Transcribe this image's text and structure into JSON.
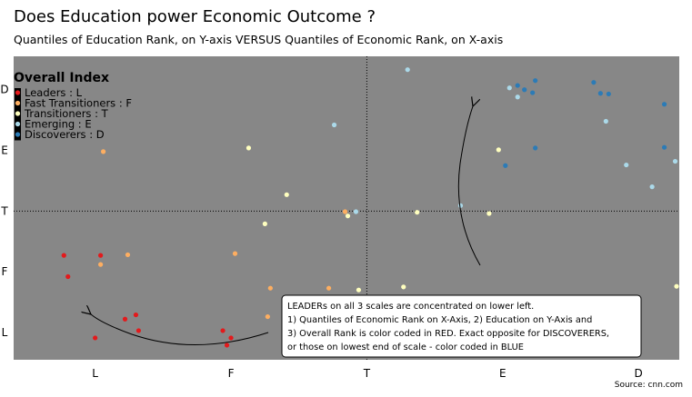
{
  "title": "Does Education power Economic Outcome ?",
  "subtitle": "Quantiles of Education Rank, on Y-axis VERSUS Quantiles of Economic Rank, on X-axis",
  "source": "Source: cnn.com",
  "colors": {
    "plot_bg": "#878787",
    "Leaders": "#e31a1c",
    "Fast Transitioners": "#fdae61",
    "Transitioners": "#ffffbf",
    "Emerging": "#abd9e9",
    "Discoverers": "#2c7bb6"
  },
  "chart_data": {
    "type": "scatter",
    "title": "Does Education power Economic Outcome ?",
    "subtitle": "Quantiles of Education Rank, on Y-axis VERSUS Quantiles of Economic Rank, on X-axis",
    "x_categories": [
      "L",
      "F",
      "T",
      "E",
      "D"
    ],
    "y_categories": [
      "L",
      "F",
      "T",
      "E",
      "D"
    ],
    "xlim": [
      0.4,
      5.3
    ],
    "ylim": [
      0.55,
      5.55
    ],
    "grid": false,
    "reference_lines": {
      "x": 3,
      "y": 3
    },
    "legend": {
      "title": "Overall Index",
      "position": "top-left",
      "entries": [
        {
          "name": "Leaders : L",
          "series": "Leaders"
        },
        {
          "name": "Fast Transitioners : F",
          "series": "Fast Transitioners"
        },
        {
          "name": "Transitioners : T",
          "series": "Transitioners"
        },
        {
          "name": "Emerging : E",
          "series": "Emerging"
        },
        {
          "name": "Discoverers : D",
          "series": "Discoverers"
        }
      ]
    },
    "series": [
      {
        "name": "Leaders",
        "points": [
          [
            0.77,
            2.27
          ],
          [
            1.04,
            2.27
          ],
          [
            0.8,
            1.92
          ],
          [
            1.3,
            1.29
          ],
          [
            1.22,
            1.22
          ],
          [
            1.32,
            1.03
          ],
          [
            1.0,
            0.91
          ],
          [
            1.94,
            1.03
          ],
          [
            2.0,
            0.91
          ],
          [
            1.97,
            0.79
          ],
          [
            2.55,
            0.93
          ]
        ]
      },
      {
        "name": "Fast Transitioners",
        "points": [
          [
            1.06,
            3.98
          ],
          [
            1.04,
            2.12
          ],
          [
            1.24,
            2.28
          ],
          [
            2.03,
            2.3
          ],
          [
            2.29,
            1.73
          ],
          [
            2.27,
            1.26
          ],
          [
            2.84,
            2.99
          ],
          [
            2.72,
            1.73
          ]
        ]
      },
      {
        "name": "Transitioners",
        "points": [
          [
            2.13,
            4.04
          ],
          [
            2.41,
            3.27
          ],
          [
            2.25,
            2.79
          ],
          [
            2.86,
            2.92
          ],
          [
            2.94,
            1.7
          ],
          [
            3.27,
            1.75
          ],
          [
            3.37,
            2.98
          ],
          [
            3.9,
            2.96
          ],
          [
            3.97,
            4.01
          ],
          [
            5.28,
            1.76
          ]
        ]
      },
      {
        "name": "Emerging",
        "points": [
          [
            3.3,
            5.33
          ],
          [
            2.76,
            4.42
          ],
          [
            2.92,
            2.99
          ],
          [
            3.69,
            3.09
          ],
          [
            4.05,
            5.03
          ],
          [
            4.11,
            4.88
          ],
          [
            4.76,
            4.48
          ],
          [
            4.91,
            3.76
          ],
          [
            5.1,
            3.4
          ],
          [
            5.27,
            3.82
          ]
        ]
      },
      {
        "name": "Discoverers",
        "points": [
          [
            4.22,
            4.95
          ],
          [
            4.16,
            5.0
          ],
          [
            4.11,
            5.07
          ],
          [
            4.24,
            5.15
          ],
          [
            4.67,
            5.12
          ],
          [
            4.72,
            4.94
          ],
          [
            4.78,
            4.93
          ],
          [
            5.19,
            4.76
          ],
          [
            4.24,
            4.04
          ],
          [
            4.02,
            3.75
          ],
          [
            5.19,
            4.05
          ]
        ]
      }
    ],
    "annotations": [
      {
        "text_lines": [
          "LEADERs on all 3 scales are concentrated on lower left.",
          "1) Quantiles of Economic Rank on X-Axis, 2) Education on Y-Axis and",
          "3) Overall Rank is color coded in RED. Exact opposite for DISCOVERERS,",
          "or those on lowest end of scale - color coded in BLUE"
        ]
      }
    ]
  }
}
